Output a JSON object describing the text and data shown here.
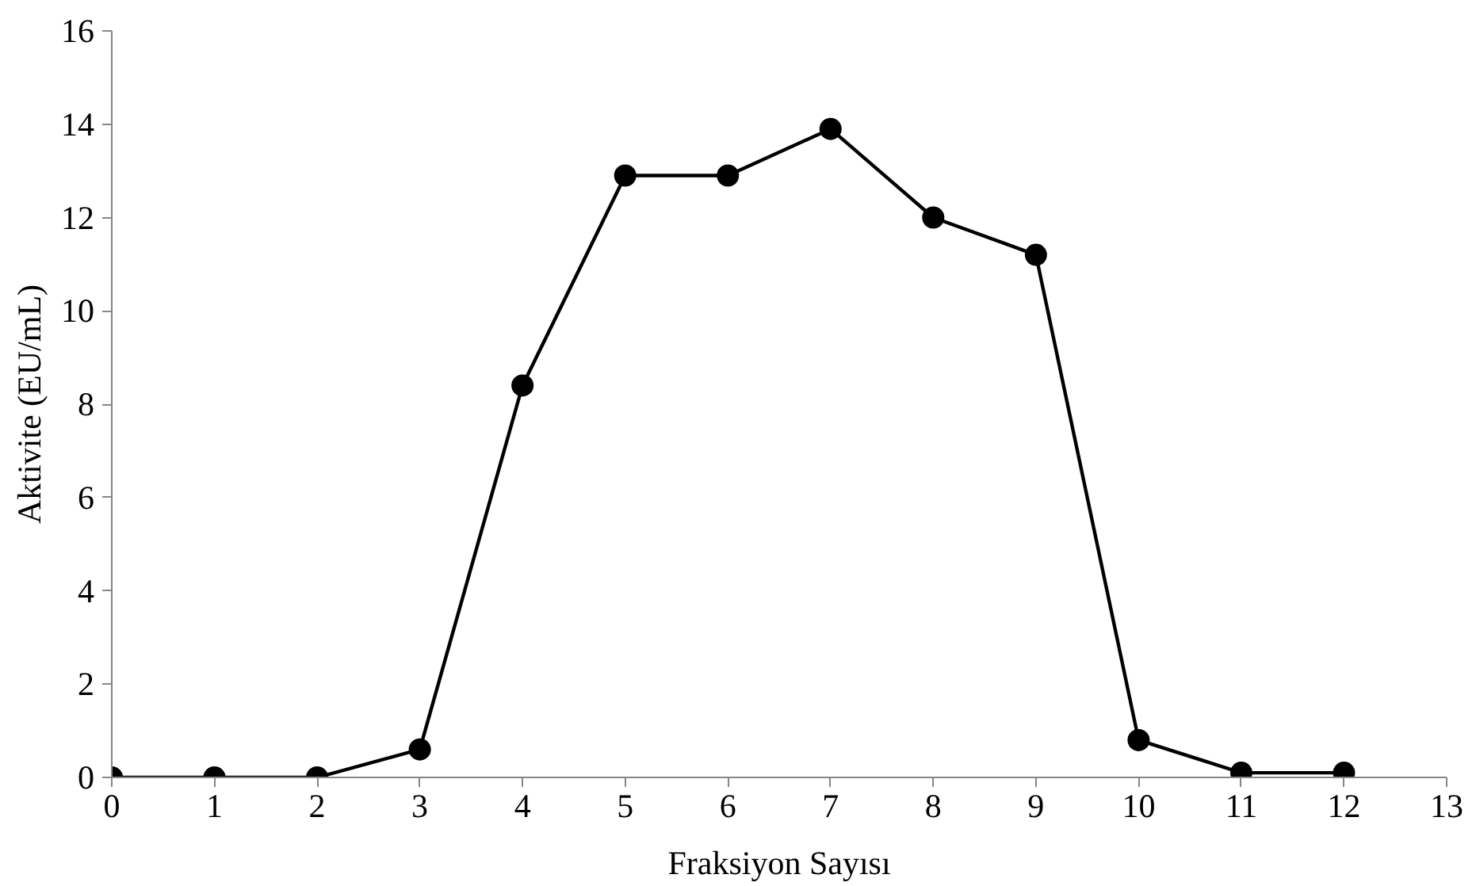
{
  "chart_data": {
    "type": "line",
    "xlabel": "Fraksiyon Sayısı",
    "ylabel": "Aktivite (EU/mL)",
    "x": [
      0,
      1,
      2,
      3,
      4,
      5,
      6,
      7,
      8,
      9,
      10,
      11,
      12
    ],
    "series": [
      {
        "color": "#000000",
        "values": [
          0,
          0,
          0,
          0.6,
          8.4,
          12.9,
          12.9,
          13.9,
          12.0,
          11.2,
          0.8,
          0.1,
          0.1
        ]
      }
    ],
    "xlim": [
      0,
      13
    ],
    "xticks": [
      0,
      1,
      2,
      3,
      4,
      5,
      6,
      7,
      8,
      9,
      10,
      11,
      12,
      13
    ],
    "ylim": [
      0,
      16
    ],
    "yticks": [
      0,
      2,
      4,
      6,
      8,
      10,
      12,
      14,
      16
    ],
    "marker": "circle",
    "line_style": "solid",
    "grid": false
  }
}
